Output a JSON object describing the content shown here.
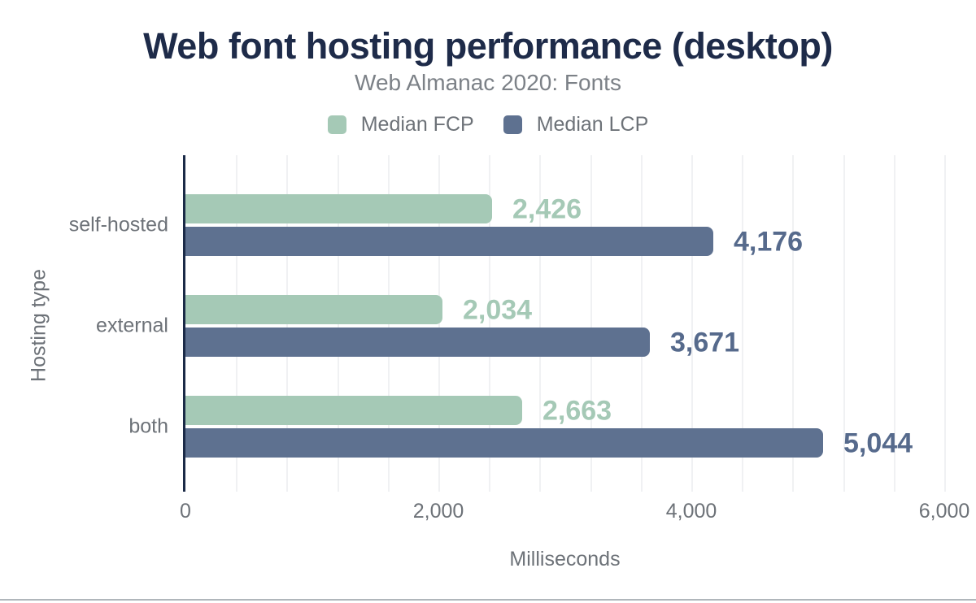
{
  "chart_data": {
    "type": "bar",
    "orientation": "horizontal",
    "title": "Web font hosting performance (desktop)",
    "subtitle": "Web Almanac 2020: Fonts",
    "categories": [
      "self-hosted",
      "external",
      "both"
    ],
    "series": [
      {
        "name": "Median FCP",
        "color": "#a5c9b6",
        "label_color": "#a5c9b6",
        "values": [
          2426,
          2034,
          2663
        ],
        "value_labels": [
          "2,426",
          "2,034",
          "2,663"
        ]
      },
      {
        "name": "Median LCP",
        "color": "#5e7190",
        "label_color": "#566a8c",
        "values": [
          4176,
          3671,
          5044
        ],
        "value_labels": [
          "4,176",
          "3,671",
          "5,044"
        ]
      }
    ],
    "xlabel": "Milliseconds",
    "ylabel": "Hosting type",
    "xlim": [
      0,
      6000
    ],
    "xticks": [
      0,
      2000,
      4000,
      6000
    ],
    "xtick_labels": [
      "0",
      "2,000",
      "4,000",
      "6,000"
    ],
    "minor_grid_step": 400,
    "grid": true,
    "legend_position": "top"
  },
  "colors": {
    "title": "#1e2b49",
    "axis_line": "#1b2a47",
    "muted_text": "#6d7278",
    "subtitle_text": "#7c8187",
    "gridline": "#f0f1f3",
    "divider": "#b0b6bb",
    "background": "#ffffff"
  }
}
